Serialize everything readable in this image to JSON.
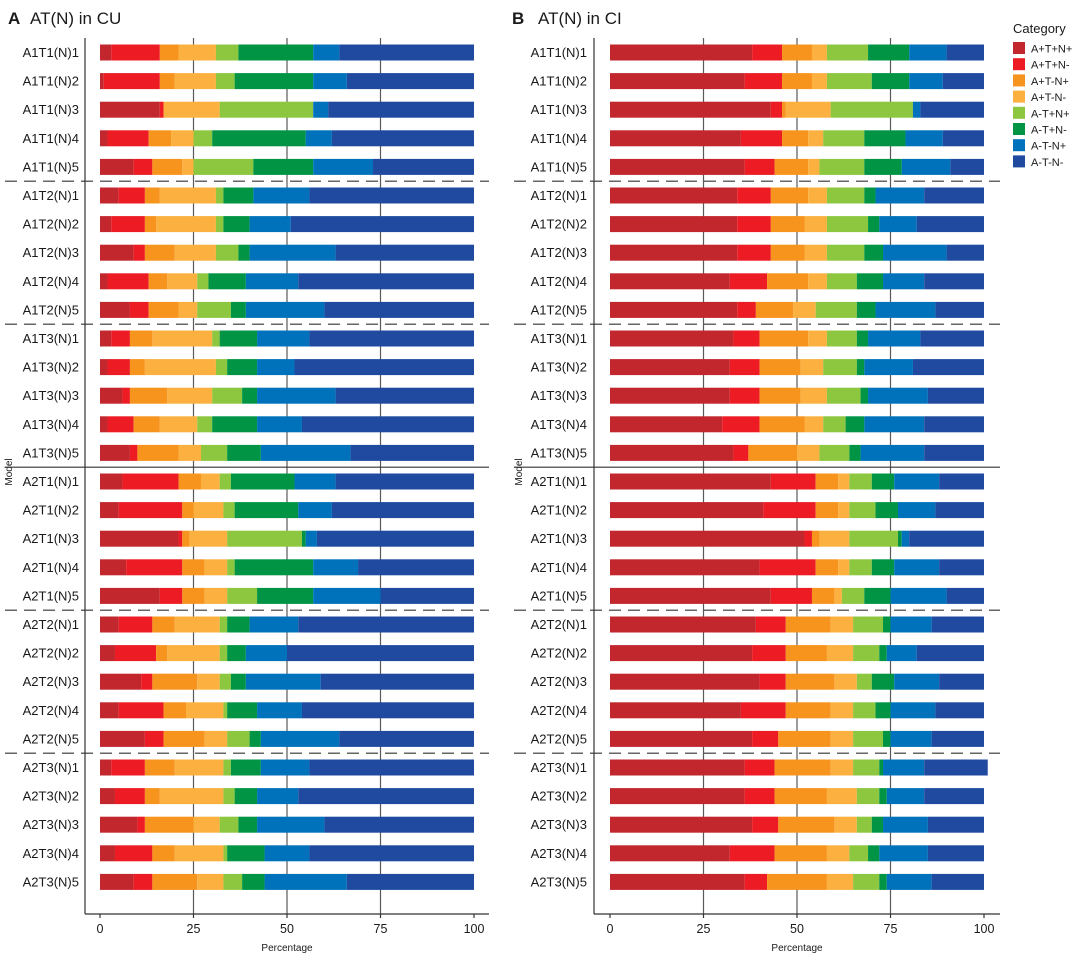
{
  "category_title": "Category",
  "legend": [
    {
      "label": "A+T+N+",
      "color": "#C1272D"
    },
    {
      "label": "A+T+N-",
      "color": "#ED1C24"
    },
    {
      "label": "A+T-N+",
      "color": "#F7941D"
    },
    {
      "label": "A+T-N-",
      "color": "#FBB040"
    },
    {
      "label": "A-T+N+",
      "color": "#8DC63F"
    },
    {
      "label": "A-T+N-",
      "color": "#009444"
    },
    {
      "label": "A-T-N+",
      "color": "#0072BC"
    },
    {
      "label": "A-T-N-",
      "color": "#1F4AA0"
    }
  ],
  "chart_data": [
    {
      "letter": "A",
      "type": "bar",
      "orientation": "horizontal",
      "stacked": true,
      "title": "AT(N) in CU",
      "xlabel": "Percentage",
      "ylabel": "Model",
      "xlim": [
        0,
        100
      ],
      "xticks": [
        "0",
        "25",
        "50",
        "75",
        "100"
      ],
      "categories": [
        "A1T1(N)1",
        "A1T1(N)2",
        "A1T1(N)3",
        "A1T1(N)4",
        "A1T1(N)5",
        "A1T2(N)1",
        "A1T2(N)2",
        "A1T2(N)3",
        "A1T2(N)4",
        "A1T2(N)5",
        "A1T3(N)1",
        "A1T3(N)2",
        "A1T3(N)3",
        "A1T3(N)4",
        "A1T3(N)5",
        "A2T1(N)1",
        "A2T1(N)2",
        "A2T1(N)3",
        "A2T1(N)4",
        "A2T1(N)5",
        "A2T2(N)1",
        "A2T2(N)2",
        "A2T2(N)3",
        "A2T2(N)4",
        "A2T2(N)5",
        "A2T3(N)1",
        "A2T3(N)2",
        "A2T3(N)3",
        "A2T3(N)4",
        "A2T3(N)5"
      ],
      "series": [
        {
          "name": "A+T+N+",
          "values": [
            3,
            1,
            16,
            2,
            9,
            5,
            3,
            9,
            2,
            8,
            3,
            2,
            6,
            2,
            8,
            6,
            5,
            21,
            7,
            16,
            5,
            4,
            11,
            5,
            12,
            3,
            4,
            10,
            4,
            9
          ]
        },
        {
          "name": "A+T+N-",
          "values": [
            13,
            15,
            1,
            11,
            5,
            7,
            9,
            3,
            11,
            5,
            5,
            6,
            2,
            7,
            2,
            15,
            17,
            1,
            15,
            6,
            9,
            11,
            3,
            12,
            5,
            9,
            8,
            2,
            10,
            5
          ]
        },
        {
          "name": "A+T-N+",
          "values": [
            5,
            4,
            0,
            6,
            8,
            4,
            3,
            8,
            5,
            8,
            6,
            4,
            10,
            7,
            11,
            6,
            3,
            2,
            6,
            6,
            6,
            3,
            12,
            6,
            11,
            8,
            4,
            13,
            6,
            12
          ]
        },
        {
          "name": "A+T-N-",
          "values": [
            10,
            11,
            15,
            6,
            3,
            15,
            16,
            11,
            8,
            5,
            16,
            19,
            12,
            10,
            6,
            5,
            8,
            10,
            6,
            6,
            12,
            14,
            6,
            10,
            6,
            13,
            17,
            7,
            13,
            7
          ]
        },
        {
          "name": "A-T+N+",
          "values": [
            6,
            5,
            25,
            5,
            16,
            2,
            2,
            6,
            3,
            9,
            2,
            3,
            8,
            4,
            7,
            3,
            3,
            20,
            2,
            8,
            2,
            2,
            3,
            1,
            6,
            2,
            3,
            5,
            1,
            5
          ]
        },
        {
          "name": "A-T+N-",
          "values": [
            20,
            21,
            0,
            25,
            16,
            8,
            7,
            3,
            10,
            4,
            10,
            8,
            4,
            12,
            9,
            17,
            17,
            1,
            21,
            15,
            6,
            5,
            4,
            8,
            3,
            8,
            6,
            5,
            10,
            6
          ]
        },
        {
          "name": "A-T-N+",
          "values": [
            7,
            9,
            4,
            7,
            16,
            15,
            11,
            23,
            14,
            21,
            14,
            10,
            21,
            12,
            24,
            11,
            9,
            3,
            12,
            18,
            13,
            11,
            20,
            12,
            21,
            13,
            11,
            18,
            12,
            22
          ]
        },
        {
          "name": "A-T-N-",
          "values": [
            36,
            34,
            39,
            38,
            27,
            44,
            49,
            37,
            47,
            40,
            44,
            48,
            37,
            46,
            33,
            37,
            38,
            42,
            31,
            25,
            47,
            50,
            41,
            46,
            36,
            44,
            47,
            40,
            44,
            34
          ]
        }
      ]
    },
    {
      "letter": "B",
      "type": "bar",
      "orientation": "horizontal",
      "stacked": true,
      "title": "AT(N) in CI",
      "xlabel": "Percentage",
      "ylabel": "Model",
      "xlim": [
        0,
        100
      ],
      "xticks": [
        "0",
        "25",
        "50",
        "75",
        "100"
      ],
      "categories": [
        "A1T1(N)1",
        "A1T1(N)2",
        "A1T1(N)3",
        "A1T1(N)4",
        "A1T1(N)5",
        "A1T2(N)1",
        "A1T2(N)2",
        "A1T2(N)3",
        "A1T2(N)4",
        "A1T2(N)5",
        "A1T3(N)1",
        "A1T3(N)2",
        "A1T3(N)3",
        "A1T3(N)4",
        "A1T3(N)5",
        "A2T1(N)1",
        "A2T1(N)2",
        "A2T1(N)3",
        "A2T1(N)4",
        "A2T1(N)5",
        "A2T2(N)1",
        "A2T2(N)2",
        "A2T2(N)3",
        "A2T2(N)4",
        "A2T2(N)5",
        "A2T3(N)1",
        "A2T3(N)2",
        "A2T3(N)3",
        "A2T3(N)4",
        "A2T3(N)5"
      ],
      "series": [
        {
          "name": "A+T+N+",
          "values": [
            38,
            36,
            43,
            35,
            36,
            34,
            34,
            34,
            32,
            34,
            33,
            32,
            32,
            30,
            33,
            43,
            41,
            52,
            40,
            43,
            39,
            38,
            40,
            35,
            38,
            36,
            36,
            38,
            32,
            36
          ]
        },
        {
          "name": "A+T+N-",
          "values": [
            8,
            10,
            3,
            11,
            8,
            9,
            9,
            9,
            10,
            5,
            7,
            8,
            8,
            10,
            4,
            12,
            14,
            2,
            15,
            11,
            8,
            9,
            7,
            12,
            7,
            8,
            8,
            7,
            12,
            6
          ]
        },
        {
          "name": "A+T-N+",
          "values": [
            8,
            8,
            1,
            7,
            9,
            10,
            9,
            9,
            11,
            10,
            13,
            11,
            11,
            12,
            13,
            6,
            6,
            2,
            6,
            6,
            12,
            11,
            13,
            12,
            14,
            15,
            14,
            15,
            14,
            16
          ]
        },
        {
          "name": "A+T-N-",
          "values": [
            4,
            4,
            12,
            4,
            3,
            5,
            6,
            6,
            5,
            6,
            5,
            6,
            7,
            5,
            6,
            3,
            3,
            8,
            3,
            2,
            6,
            7,
            6,
            6,
            6,
            6,
            8,
            6,
            6,
            7
          ]
        },
        {
          "name": "A-T+N+",
          "values": [
            11,
            12,
            22,
            11,
            12,
            10,
            11,
            10,
            8,
            11,
            8,
            9,
            9,
            6,
            8,
            6,
            7,
            13,
            6,
            6,
            8,
            7,
            4,
            6,
            8,
            7,
            6,
            4,
            5,
            7
          ]
        },
        {
          "name": "A-T+N-",
          "values": [
            11,
            10,
            0,
            11,
            10,
            3,
            3,
            5,
            7,
            5,
            3,
            2,
            2,
            5,
            3,
            6,
            6,
            1,
            6,
            7,
            2,
            2,
            6,
            4,
            2,
            1,
            2,
            3,
            3,
            2
          ]
        },
        {
          "name": "A-T-N+",
          "values": [
            10,
            9,
            2,
            10,
            13,
            13,
            10,
            17,
            11,
            16,
            14,
            13,
            16,
            16,
            17,
            12,
            10,
            2,
            12,
            15,
            11,
            8,
            12,
            12,
            11,
            11,
            10,
            12,
            13,
            12
          ]
        },
        {
          "name": "A-T-N-",
          "values": [
            10,
            11,
            17,
            11,
            9,
            16,
            18,
            10,
            16,
            13,
            17,
            19,
            15,
            16,
            16,
            12,
            13,
            20,
            12,
            10,
            14,
            18,
            12,
            13,
            14,
            17,
            16,
            15,
            15,
            14
          ]
        }
      ]
    }
  ]
}
